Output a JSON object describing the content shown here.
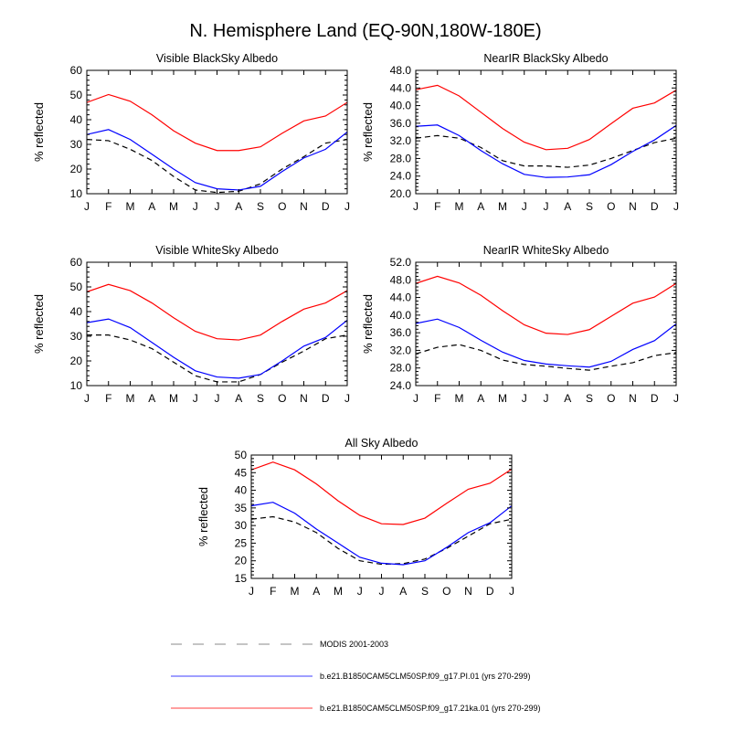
{
  "figure": {
    "title": "N. Hemisphere Land (EQ-90N,180W-180E)"
  },
  "legend": [
    {
      "label": "MODIS 2001-2003",
      "color": "#000000",
      "dash": "dashed"
    },
    {
      "label": "b.e21.B1850CAM5CLM50SP.f09_g17.PI.01 (yrs 270-299)",
      "color": "#0000ff",
      "dash": "solid"
    },
    {
      "label": "b.e21.B1850CAM5CLM50SP.f09_g17.21ka.01 (yrs 270-299)",
      "color": "#ff0000",
      "dash": "solid"
    }
  ],
  "chart_data": [
    {
      "type": "line",
      "title": "Visible BlackSky Albedo",
      "xlabel": "",
      "ylabel": "% reflected",
      "categories": [
        "J",
        "F",
        "M",
        "A",
        "M",
        "J",
        "J",
        "A",
        "S",
        "O",
        "N",
        "D",
        "J"
      ],
      "ylim": [
        10,
        60
      ],
      "yticks": [
        10,
        20,
        30,
        40,
        50,
        60
      ],
      "ytick_labels": [
        "10",
        "20",
        "30",
        "40",
        "50",
        "60"
      ],
      "series": [
        {
          "name": "MODIS 2001-2003",
          "color": "#000000",
          "dash": "dashed",
          "values": [
            32,
            31.5,
            28,
            23.5,
            17,
            11.5,
            10.5,
            11,
            14,
            20,
            25,
            30.5,
            32
          ]
        },
        {
          "name": "b.e21.B1850CAM5CLM50SP.f09_g17.PI.01 (yrs 270-299)",
          "color": "#0000ff",
          "dash": "solid",
          "values": [
            34,
            36,
            32,
            26,
            20,
            14.5,
            12,
            11.5,
            13,
            19,
            24.5,
            28,
            35
          ]
        },
        {
          "name": "b.e21.B1850CAM5CLM50SP.f09_g17.21ka.01 (yrs 270-299)",
          "color": "#ff0000",
          "dash": "solid",
          "values": [
            47,
            50.2,
            47.5,
            42,
            35.5,
            30.5,
            27.5,
            27.5,
            29,
            34.5,
            39.5,
            41.5,
            47
          ]
        }
      ]
    },
    {
      "type": "line",
      "title": "NearIR BlackSky Albedo",
      "xlabel": "",
      "ylabel": "% reflected",
      "categories": [
        "J",
        "F",
        "M",
        "A",
        "M",
        "J",
        "J",
        "A",
        "S",
        "O",
        "N",
        "D",
        "J"
      ],
      "ylim": [
        20,
        48
      ],
      "yticks": [
        20,
        24,
        28,
        32,
        36,
        40,
        44,
        48
      ],
      "ytick_labels": [
        "20.0",
        "24.0",
        "28.0",
        "32.0",
        "36.0",
        "40.0",
        "44.0",
        "48.0"
      ],
      "series": [
        {
          "name": "MODIS 2001-2003",
          "color": "#000000",
          "dash": "dashed",
          "values": [
            32.6,
            33.2,
            32.6,
            30.5,
            27.5,
            26.3,
            26.3,
            26,
            26.5,
            28,
            29.8,
            31.6,
            32.6
          ]
        },
        {
          "name": "b.e21.B1850CAM5CLM50SP.f09_g17.PI.01 (yrs 270-299)",
          "color": "#0000ff",
          "dash": "solid",
          "values": [
            35.3,
            35.6,
            33.2,
            29.8,
            26.8,
            24.4,
            23.7,
            23.8,
            24.3,
            26.6,
            29.6,
            32.2,
            35.5
          ]
        },
        {
          "name": "b.e21.B1850CAM5CLM50SP.f09_g17.21ka.01 (yrs 270-299)",
          "color": "#ff0000",
          "dash": "solid",
          "values": [
            43.6,
            44.6,
            42.2,
            38.5,
            34.8,
            31.7,
            30,
            30.3,
            32.3,
            35.9,
            39.4,
            40.6,
            43.5
          ]
        }
      ]
    },
    {
      "type": "line",
      "title": "Visible WhiteSky Albedo",
      "xlabel": "",
      "ylabel": "% reflected",
      "categories": [
        "J",
        "F",
        "M",
        "A",
        "M",
        "J",
        "J",
        "A",
        "S",
        "O",
        "N",
        "D",
        "J"
      ],
      "ylim": [
        10,
        60
      ],
      "yticks": [
        10,
        20,
        30,
        40,
        50,
        60
      ],
      "ytick_labels": [
        "10",
        "20",
        "30",
        "40",
        "50",
        "60"
      ],
      "series": [
        {
          "name": "MODIS 2001-2003",
          "color": "#000000",
          "dash": "dashed",
          "values": [
            30.5,
            30.5,
            28.5,
            25,
            19.5,
            14,
            11.5,
            11.5,
            14.5,
            19.5,
            24,
            29,
            30.5
          ]
        },
        {
          "name": "b.e21.B1850CAM5CLM50SP.f09_g17.PI.01 (yrs 270-299)",
          "color": "#0000ff",
          "dash": "solid",
          "values": [
            35.5,
            37,
            33.5,
            27.5,
            21.5,
            16,
            13.5,
            13,
            14.5,
            20,
            26,
            29.5,
            36.5
          ]
        },
        {
          "name": "b.e21.B1850CAM5CLM50SP.f09_g17.21ka.01 (yrs 270-299)",
          "color": "#ff0000",
          "dash": "solid",
          "values": [
            48,
            51,
            48.5,
            43.5,
            37.5,
            32,
            29,
            28.5,
            30.5,
            36,
            41,
            43.5,
            48.5
          ]
        }
      ]
    },
    {
      "type": "line",
      "title": "NearIR WhiteSky Albedo",
      "xlabel": "",
      "ylabel": "% reflected",
      "categories": [
        "J",
        "F",
        "M",
        "A",
        "M",
        "J",
        "J",
        "A",
        "S",
        "O",
        "N",
        "D",
        "J"
      ],
      "ylim": [
        24,
        52
      ],
      "yticks": [
        24,
        28,
        32,
        36,
        40,
        44,
        48,
        52
      ],
      "ytick_labels": [
        "24.0",
        "28.0",
        "32.0",
        "36.0",
        "40.0",
        "44.0",
        "48.0",
        "52.0"
      ],
      "series": [
        {
          "name": "MODIS 2001-2003",
          "color": "#000000",
          "dash": "dashed",
          "values": [
            31.2,
            32.7,
            33.3,
            32,
            29.8,
            28.8,
            28.4,
            27.9,
            27.5,
            28.4,
            29.2,
            30.8,
            31.5
          ]
        },
        {
          "name": "b.e21.B1850CAM5CLM50SP.f09_g17.PI.01 (yrs 270-299)",
          "color": "#0000ff",
          "dash": "solid",
          "values": [
            38.1,
            39.1,
            37.2,
            34.3,
            31.6,
            29.7,
            28.9,
            28.5,
            28.2,
            29.5,
            32.2,
            34.2,
            38
          ]
        },
        {
          "name": "b.e21.B1850CAM5CLM50SP.f09_g17.21ka.01 (yrs 270-299)",
          "color": "#ff0000",
          "dash": "solid",
          "values": [
            47.2,
            48.8,
            47.3,
            44.5,
            41,
            37.8,
            35.9,
            35.6,
            36.7,
            39.7,
            42.7,
            44.1,
            47.2
          ]
        }
      ]
    },
    {
      "type": "line",
      "title": "All Sky Albedo",
      "xlabel": "",
      "ylabel": "% reflected",
      "categories": [
        "J",
        "F",
        "M",
        "A",
        "M",
        "J",
        "J",
        "A",
        "S",
        "O",
        "N",
        "D",
        "J"
      ],
      "ylim": [
        15,
        50
      ],
      "yticks": [
        15,
        20,
        25,
        30,
        35,
        40,
        45,
        50
      ],
      "ytick_labels": [
        "15",
        "20",
        "25",
        "30",
        "35",
        "40",
        "45",
        "50"
      ],
      "series": [
        {
          "name": "MODIS 2001-2003",
          "color": "#000000",
          "dash": "dashed",
          "values": [
            31.8,
            32.5,
            31,
            28,
            23.5,
            20,
            19,
            19.2,
            20.5,
            23.5,
            27,
            30.5,
            31.8
          ]
        },
        {
          "name": "b.e21.B1850CAM5CLM50SP.f09_g17.PI.01 (yrs 270-299)",
          "color": "#0000ff",
          "dash": "solid",
          "values": [
            35.6,
            36.6,
            33.5,
            29,
            25,
            21,
            19.3,
            18.9,
            20,
            23.8,
            28,
            30.8,
            35.6
          ]
        },
        {
          "name": "b.e21.B1850CAM5CLM50SP.f09_g17.21ka.01 (yrs 270-299)",
          "color": "#ff0000",
          "dash": "solid",
          "values": [
            45.8,
            48,
            45.8,
            41.8,
            37,
            32.9,
            30.5,
            30.3,
            32.1,
            36.3,
            40.3,
            42,
            46
          ]
        }
      ]
    }
  ]
}
